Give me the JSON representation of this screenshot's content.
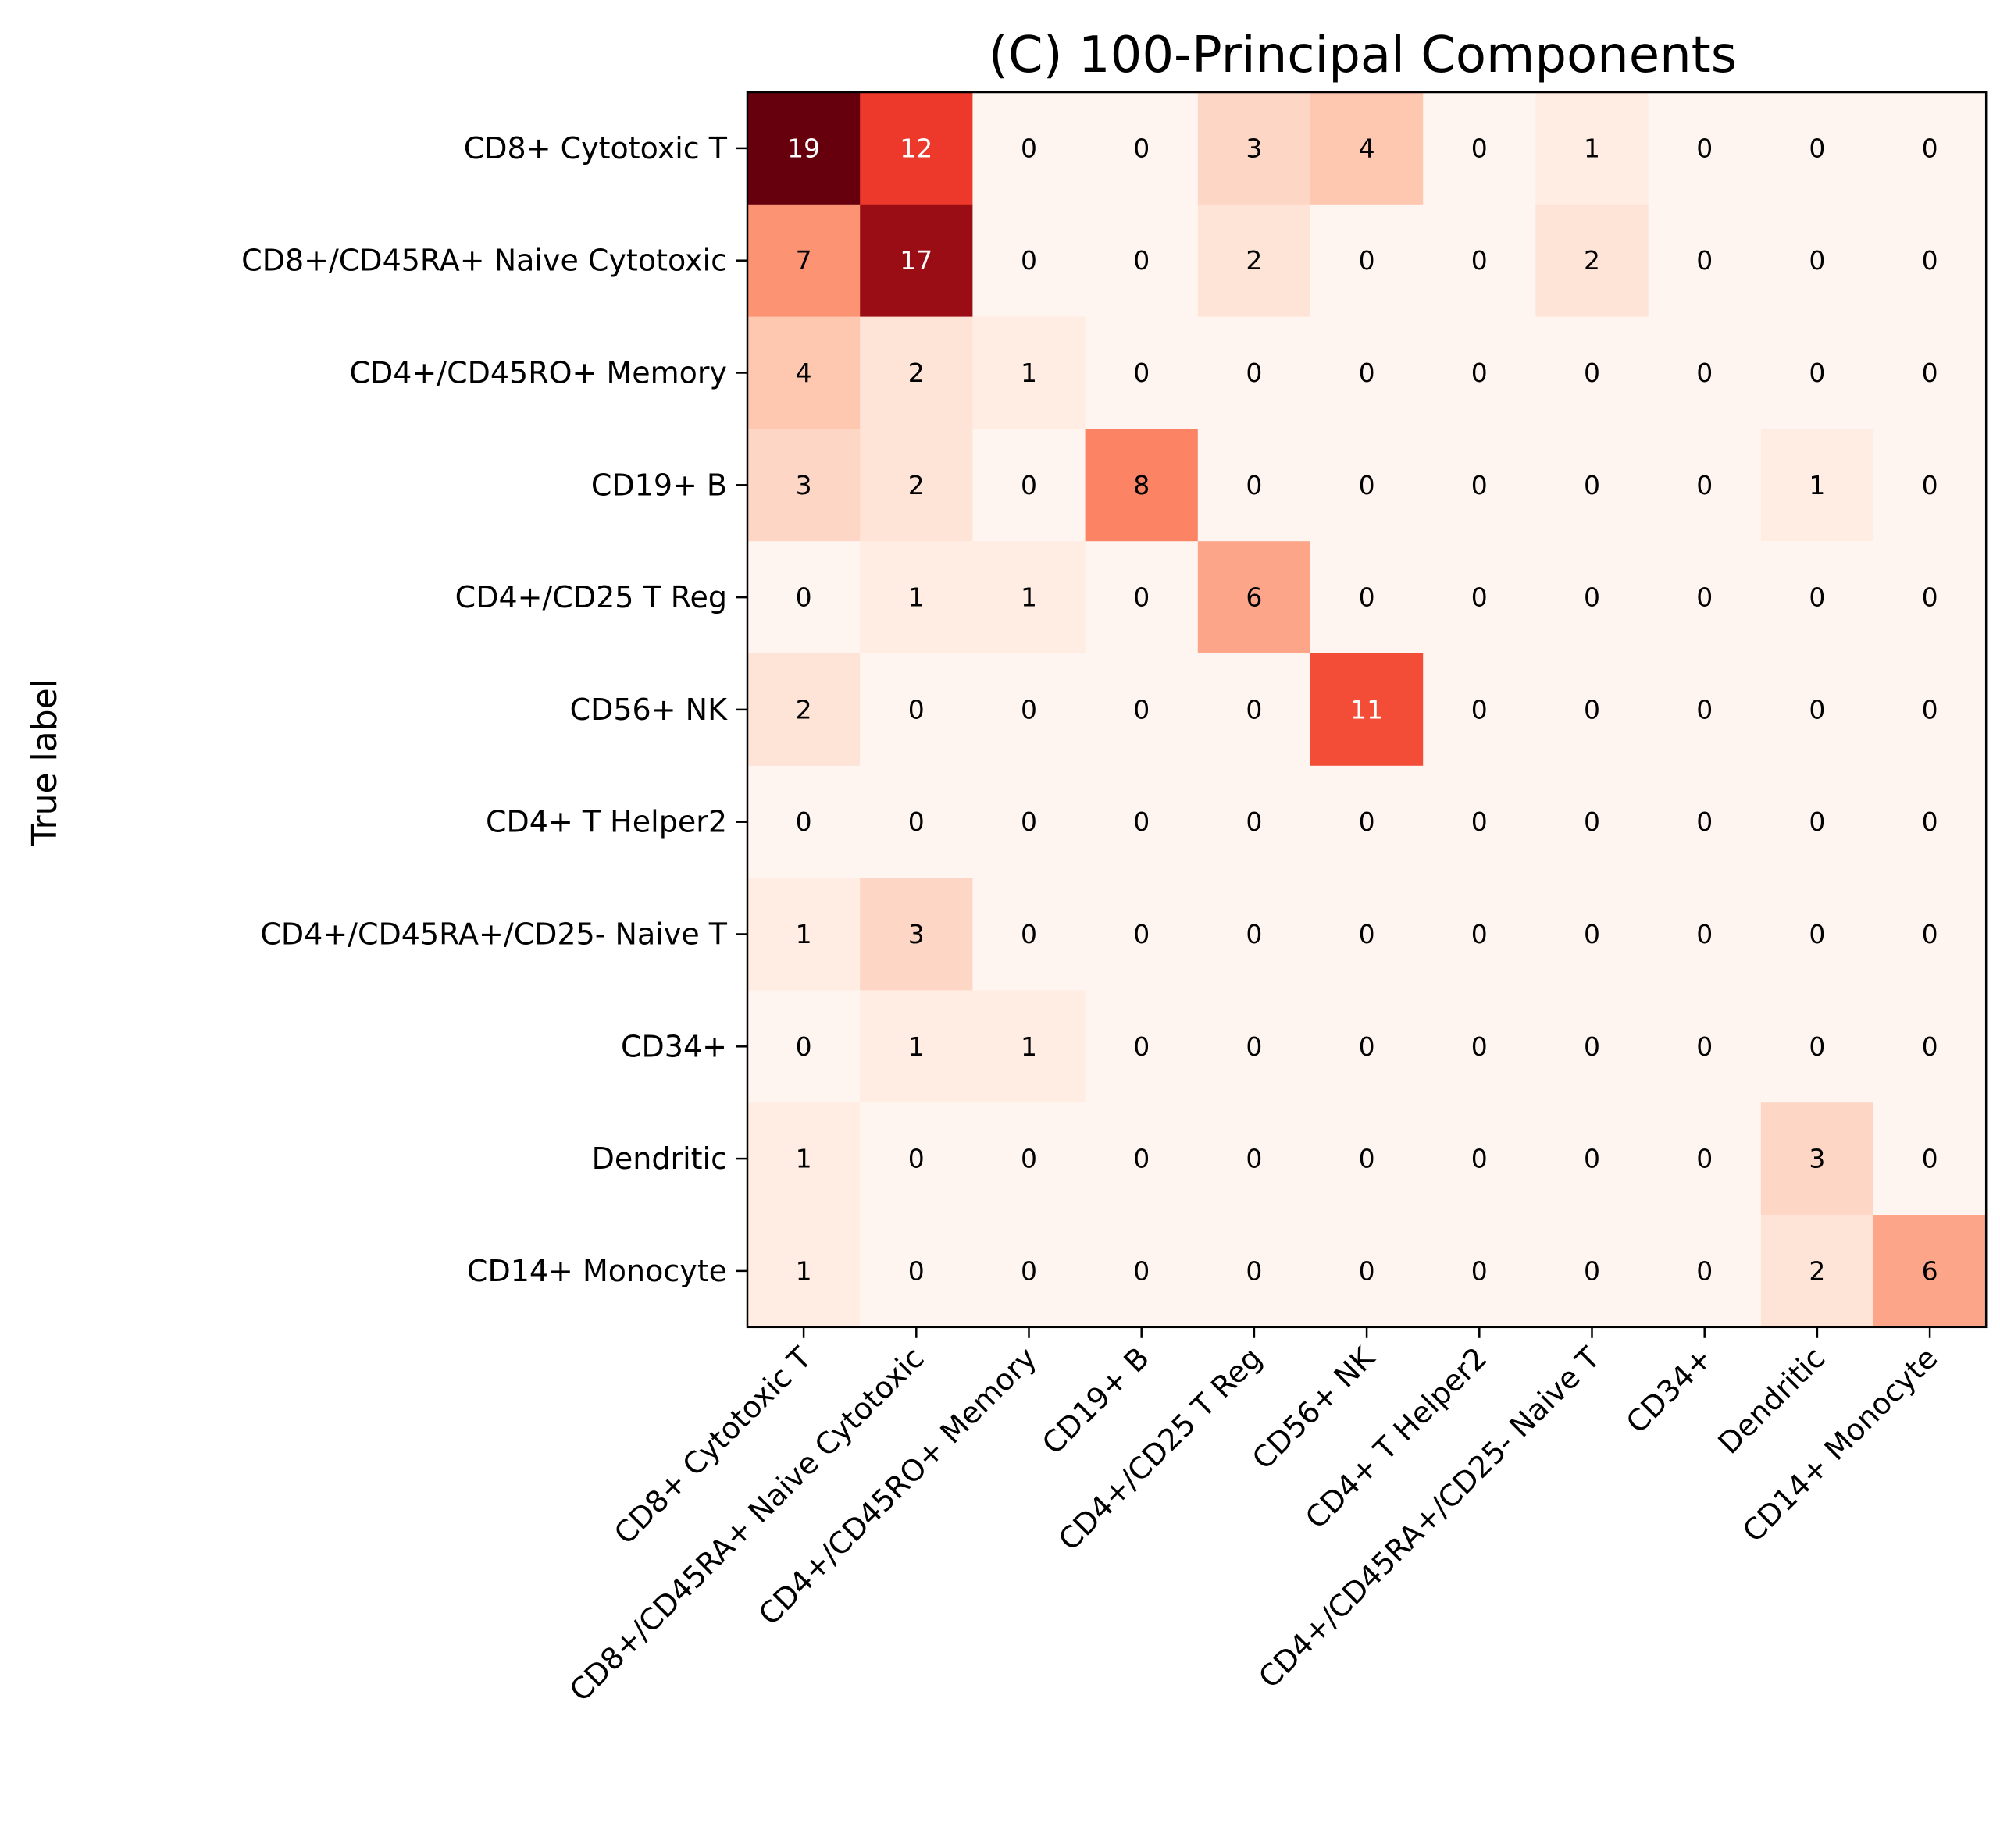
{
  "chart_data": {
    "type": "heatmap",
    "title": "(C) 100-Principal Components",
    "ylabel": "True label",
    "xlabel": "",
    "colormap": "Reds",
    "vmin": 0,
    "vmax": 19,
    "rows": [
      "CD8+ Cytotoxic T",
      "CD8+/CD45RA+ Naive Cytotoxic",
      "CD4+/CD45RO+ Memory",
      "CD19+ B",
      "CD4+/CD25 T Reg",
      "CD56+ NK",
      "CD4+ T Helper2",
      "CD4+/CD45RA+/CD25- Naive T",
      "CD34+",
      "Dendritic",
      "CD14+ Monocyte"
    ],
    "columns": [
      "CD8+ Cytotoxic T",
      "CD8+/CD45RA+ Naive Cytotoxic",
      "CD4+/CD45RO+ Memory",
      "CD19+ B",
      "CD4+/CD25 T Reg",
      "CD56+ NK",
      "CD4+ T Helper2",
      "CD4+/CD45RA+/CD25- Naive T",
      "CD34+",
      "Dendritic",
      "CD14+ Monocyte"
    ],
    "values": [
      [
        19,
        12,
        0,
        0,
        3,
        4,
        0,
        1,
        0,
        0,
        0
      ],
      [
        7,
        17,
        0,
        0,
        2,
        0,
        0,
        2,
        0,
        0,
        0
      ],
      [
        4,
        2,
        1,
        0,
        0,
        0,
        0,
        0,
        0,
        0,
        0
      ],
      [
        3,
        2,
        0,
        8,
        0,
        0,
        0,
        0,
        0,
        1,
        0
      ],
      [
        0,
        1,
        1,
        0,
        6,
        0,
        0,
        0,
        0,
        0,
        0
      ],
      [
        2,
        0,
        0,
        0,
        0,
        11,
        0,
        0,
        0,
        0,
        0
      ],
      [
        0,
        0,
        0,
        0,
        0,
        0,
        0,
        0,
        0,
        0,
        0
      ],
      [
        1,
        3,
        0,
        0,
        0,
        0,
        0,
        0,
        0,
        0,
        0
      ],
      [
        0,
        1,
        1,
        0,
        0,
        0,
        0,
        0,
        0,
        0,
        0
      ],
      [
        1,
        0,
        0,
        0,
        0,
        0,
        0,
        0,
        0,
        3,
        0
      ],
      [
        1,
        0,
        0,
        0,
        0,
        0,
        0,
        0,
        0,
        2,
        6
      ]
    ]
  }
}
